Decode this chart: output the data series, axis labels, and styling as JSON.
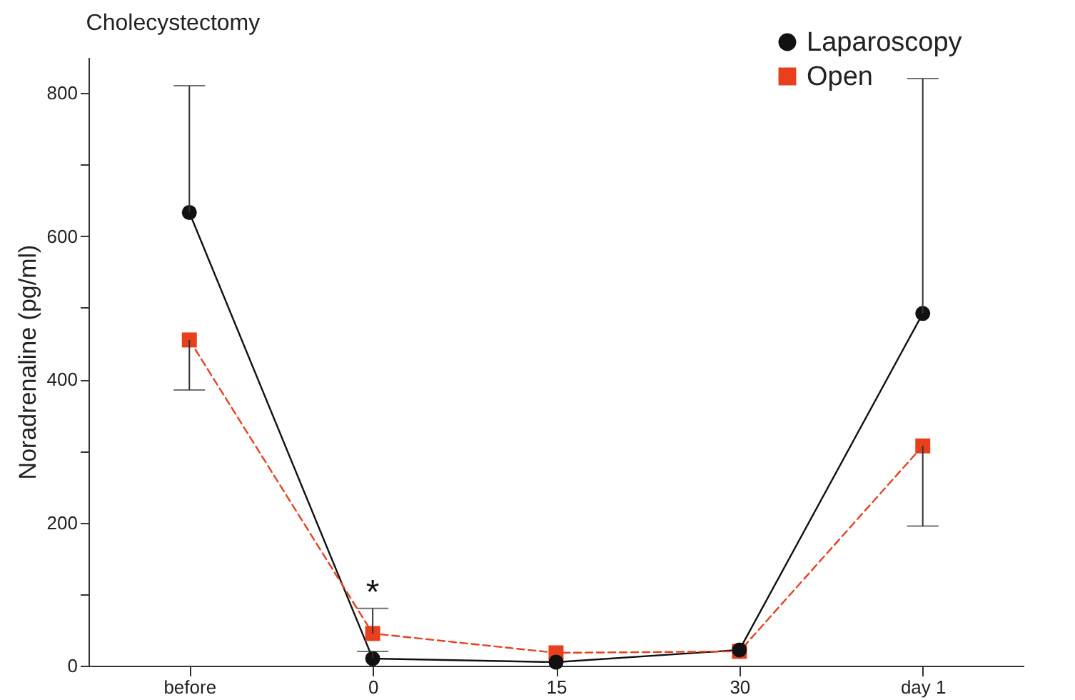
{
  "chart_data": {
    "type": "line",
    "title": "Cholecystectomy",
    "ylabel": "Noradrenaline (pg/ml)",
    "categories": [
      "before",
      "0",
      "15",
      "30",
      "day 1"
    ],
    "series": [
      {
        "name": "Laparoscopy",
        "color": "#111111",
        "marker": "circle",
        "line_style": "solid",
        "values": [
          633,
          10,
          5,
          22,
          492
        ],
        "errors": [
          [
            633,
            810
          ],
          [
            10,
            20
          ],
          null,
          null,
          [
            492,
            820
          ]
        ]
      },
      {
        "name": "Open",
        "color": "#e8401c",
        "marker": "square",
        "line_style": "dashed",
        "values": [
          455,
          45,
          18,
          20,
          307
        ],
        "errors": [
          [
            385,
            455
          ],
          [
            45,
            80
          ],
          null,
          null,
          [
            195,
            307
          ]
        ]
      }
    ],
    "ylim": [
      0,
      850
    ],
    "yticks": [
      0,
      {
        "value": 100,
        "label": null
      },
      200,
      {
        "value": 300,
        "label": null
      },
      400,
      {
        "value": 500,
        "label": null
      },
      600,
      {
        "value": 700,
        "label": null
      },
      800
    ],
    "annotations": [
      {
        "text": "*",
        "x": "0",
        "y": 45
      }
    ],
    "grid": false,
    "legend": "top right"
  }
}
